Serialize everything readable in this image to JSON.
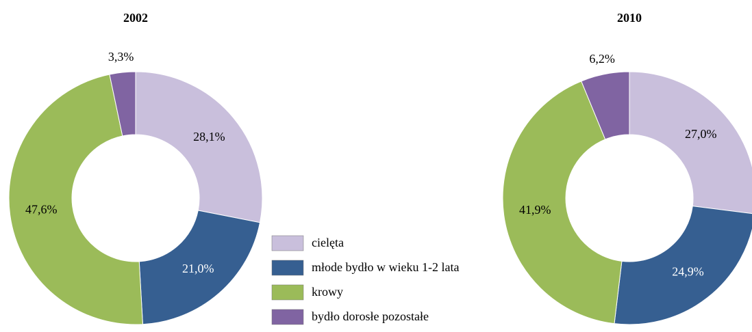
{
  "legend": {
    "labels": [
      "cielęta",
      "młode bydło w wieku 1-2 lata",
      "krowy",
      "bydło dorosłe pozostałe"
    ],
    "colors": [
      "#c9bfdc",
      "#365f91",
      "#9bbb59",
      "#8064a2"
    ],
    "label_colors": [
      "#000000",
      "#ffffff",
      "#000000",
      "#000000"
    ]
  },
  "chart_data": [
    {
      "type": "pie",
      "title": "2002",
      "values": [
        28.1,
        21.0,
        47.6,
        3.3
      ],
      "value_labels": [
        "28,1%",
        "21,0%",
        "47,6%",
        "3,3%"
      ]
    },
    {
      "type": "pie",
      "title": "2010",
      "values": [
        27.0,
        24.9,
        41.9,
        6.2
      ],
      "value_labels": [
        "27,0%",
        "24,9%",
        "41,9%",
        "6,2%"
      ]
    }
  ]
}
